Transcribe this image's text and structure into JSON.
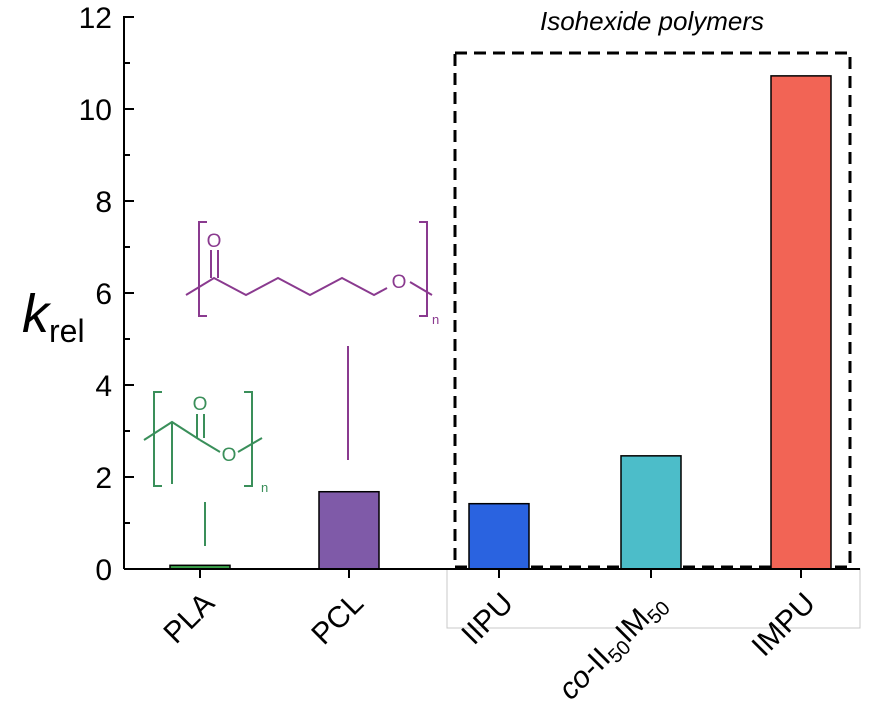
{
  "chart_data": {
    "type": "bar",
    "title": "",
    "xlabel": "",
    "ylabel": {
      "main": "k",
      "sub": "rel"
    },
    "ylim": [
      0,
      12
    ],
    "yticks": [
      "0",
      "2",
      "4",
      "6",
      "8",
      "10",
      "12"
    ],
    "categories": [
      "PLA",
      "PCL",
      "IIPU",
      "co-II50IM50",
      "IMPU"
    ],
    "category_labels": [
      {
        "parts": [
          {
            "t": "PLA",
            "sub": false
          }
        ]
      },
      {
        "parts": [
          {
            "t": "PCL",
            "sub": false
          }
        ]
      },
      {
        "parts": [
          {
            "t": "IIPU",
            "sub": false
          }
        ]
      },
      {
        "parts": [
          {
            "t": "co",
            "sub": false,
            "italic": true
          },
          {
            "t": "-II",
            "sub": false
          },
          {
            "t": "50",
            "sub": true
          },
          {
            "t": "IM",
            "sub": false
          },
          {
            "t": "50",
            "sub": true
          }
        ]
      },
      {
        "parts": [
          {
            "t": "IMPU",
            "sub": false
          }
        ]
      }
    ],
    "values": [
      0.08,
      1.68,
      1.42,
      2.46,
      10.72
    ],
    "colors": [
      "#3aa04a",
      "#7f5aa8",
      "#2a63e0",
      "#4cbdc9",
      "#f26455"
    ],
    "grid": false,
    "group_box": {
      "label": "Isohexide polymers",
      "categories": [
        "IIPU",
        "co-II50IM50",
        "IMPU"
      ]
    }
  },
  "structures": {
    "pla": {
      "atom_o": "O",
      "subscript": "n",
      "color": "#3a8f5a"
    },
    "pcl": {
      "atom_o": "O",
      "subscript": "n",
      "color": "#8a3a8f"
    }
  }
}
